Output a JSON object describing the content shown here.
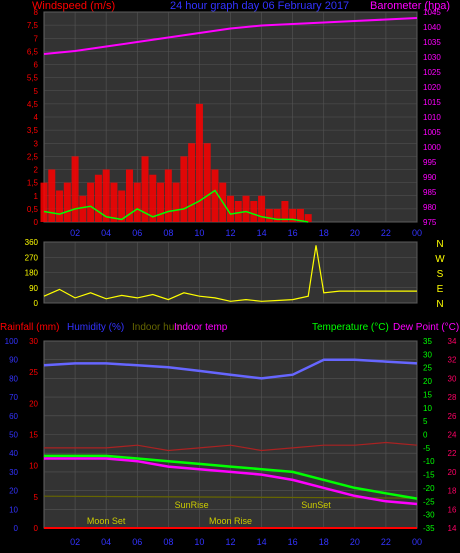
{
  "header": {
    "title": "24 hour graph day   06 February 2017",
    "left_label": "Windspeed (m/s)",
    "right_label": "Barometer (hpa)"
  },
  "colors": {
    "background": "#000000",
    "plot_bg": "#333333",
    "grid": "#555555",
    "wind": "#ff0000",
    "gust": "#00ff00",
    "barometer": "#ff00ff",
    "direction": "#ffff00",
    "rain": "#ff0000",
    "humidity": "#6666ff",
    "indoor_hum": "#666600",
    "indoor_temp": "#aa2222",
    "temperature": "#00ff00",
    "dewpoint": "#ff00ff",
    "axis_blue": "#3333ff",
    "axis_green": "#00ff00",
    "axis_pink": "#ff0066"
  },
  "chart_data": [
    {
      "type": "line",
      "title": "24 hour graph day   06 February 2017",
      "ylabel": "Windspeed (m/s)",
      "y2label": "Barometer (hpa)",
      "x_ticks": [
        "02",
        "04",
        "06",
        "08",
        "10",
        "12",
        "14",
        "16",
        "18",
        "20",
        "22",
        "00"
      ],
      "ylim": [
        0,
        8
      ],
      "y_ticks": [
        "0",
        "0,5",
        "1",
        "1,5",
        "2",
        "2,5",
        "3",
        "3,5",
        "4",
        "4,5",
        "5",
        "5,5",
        "6",
        "6,5",
        "7",
        "7,5",
        "8"
      ],
      "y2lim": [
        975,
        1045
      ],
      "y2_ticks": [
        "975",
        "980",
        "985",
        "990",
        "995",
        "1000",
        "1005",
        "1010",
        "1015",
        "1020",
        "1025",
        "1030",
        "1035",
        "1040",
        "1045"
      ],
      "series": [
        {
          "name": "Windspeed",
          "x": [
            0,
            0.5,
            1,
            1.5,
            2,
            2.5,
            3,
            3.5,
            4,
            4.5,
            5,
            5.5,
            6,
            6.5,
            7,
            7.5,
            8,
            8.5,
            9,
            9.5,
            10,
            10.5,
            11,
            11.5,
            12,
            12.5,
            13,
            13.5,
            14,
            14.5,
            15,
            15.5,
            16,
            16.5,
            17
          ],
          "values": [
            1.5,
            2.0,
            1.2,
            1.5,
            2.5,
            1.0,
            1.5,
            1.8,
            2.0,
            1.5,
            1.2,
            2.0,
            1.5,
            2.5,
            1.8,
            1.5,
            2.0,
            1.5,
            2.5,
            3.0,
            4.5,
            3.0,
            2.0,
            1.5,
            1.0,
            0.8,
            1.0,
            0.8,
            1.0,
            0.5,
            0.5,
            0.8,
            0.5,
            0.5,
            0.3
          ]
        },
        {
          "name": "Gust",
          "x": [
            0,
            1,
            2,
            3,
            4,
            5,
            6,
            7,
            8,
            9,
            10,
            11,
            12,
            13,
            14,
            15,
            16,
            17
          ],
          "values": [
            0.4,
            0.3,
            0.5,
            0.6,
            0.2,
            0.1,
            0.5,
            0.2,
            0.4,
            0.5,
            0.8,
            1.2,
            0.3,
            0.4,
            0.2,
            0.1,
            0.1,
            0.0
          ]
        },
        {
          "name": "Barometer",
          "axis": "y2",
          "x": [
            0,
            2,
            4,
            6,
            8,
            10,
            12,
            14,
            16,
            18,
            20,
            22,
            24
          ],
          "values": [
            1031,
            1032,
            1033.5,
            1035,
            1036.5,
            1038,
            1039.5,
            1040.5,
            1041,
            1041.5,
            1042,
            1042.5,
            1043
          ]
        }
      ]
    },
    {
      "type": "line",
      "title": "",
      "ylabel": "",
      "ylim": [
        0,
        360
      ],
      "y_ticks": [
        "0",
        "90",
        "180",
        "270",
        "360"
      ],
      "right_labels": [
        "N",
        "W",
        "S",
        "E",
        "N"
      ],
      "series": [
        {
          "name": "Wind direction",
          "x": [
            0,
            1,
            2,
            3,
            4,
            5,
            6,
            7,
            8,
            9,
            10,
            11,
            12,
            13,
            14,
            15,
            16,
            17,
            17.5,
            18,
            19,
            20,
            21,
            22,
            23,
            24
          ],
          "values": [
            40,
            80,
            30,
            60,
            25,
            45,
            30,
            50,
            20,
            60,
            40,
            30,
            10,
            20,
            10,
            15,
            20,
            40,
            340,
            60,
            70,
            70,
            70,
            70,
            70,
            70
          ]
        }
      ]
    },
    {
      "type": "line",
      "title": "",
      "legend_left": [
        "Rainfall (mm)",
        "Humidity (%)",
        "Indoor hum",
        "Indoor temp"
      ],
      "legend_right": [
        "Temperature (°C)",
        "Dew Point (°C)"
      ],
      "x_ticks": [
        "02",
        "04",
        "06",
        "08",
        "10",
        "12",
        "14",
        "16",
        "18",
        "20",
        "22",
        "00"
      ],
      "rain_ticks": [
        "0",
        "5",
        "10",
        "15",
        "20",
        "25",
        "30"
      ],
      "rain_lim": [
        0,
        30
      ],
      "hum_ticks": [
        "0",
        "10",
        "20",
        "30",
        "40",
        "50",
        "60",
        "70",
        "80",
        "90",
        "100"
      ],
      "hum_lim": [
        0,
        100
      ],
      "temp_ticks": [
        "-35",
        "-30",
        "-25",
        "-20",
        "-15",
        "-10",
        "-5",
        "0",
        "5",
        "10",
        "15",
        "20",
        "25",
        "30",
        "35"
      ],
      "temp_lim": [
        -35,
        35
      ],
      "dew_ticks": [
        "14",
        "16",
        "18",
        "20",
        "22",
        "24",
        "26",
        "28",
        "30",
        "32",
        "34"
      ],
      "annotations": [
        "Moon Set",
        "SunRise",
        "Moon Rise",
        "SunSet"
      ],
      "series": [
        {
          "name": "Humidity",
          "x": [
            0,
            2,
            4,
            6,
            8,
            10,
            12,
            14,
            16,
            18,
            20,
            22,
            24
          ],
          "values": [
            87,
            88,
            88,
            87,
            86,
            84,
            82,
            80,
            82,
            90,
            90,
            89,
            88
          ]
        },
        {
          "name": "Indoor hum",
          "x": [
            0,
            24
          ],
          "values": [
            17,
            16
          ]
        },
        {
          "name": "Indoor temp",
          "x": [
            0,
            2,
            4,
            6,
            8,
            10,
            12,
            14,
            16,
            18,
            20,
            22,
            24
          ],
          "values": [
            -5,
            -5,
            -5,
            -4,
            -6,
            -5,
            -4,
            -6,
            -5,
            -4,
            -4,
            -3,
            -4
          ]
        },
        {
          "name": "Temperature",
          "x": [
            0,
            2,
            4,
            6,
            8,
            10,
            12,
            14,
            16,
            18,
            20,
            22,
            24
          ],
          "values": [
            -8,
            -8,
            -8,
            -9,
            -10,
            -11,
            -12,
            -13,
            -14,
            -17,
            -20,
            -22,
            -24
          ]
        },
        {
          "name": "Dew Point",
          "x": [
            0,
            2,
            4,
            6,
            8,
            10,
            12,
            14,
            16,
            18,
            20,
            22,
            24
          ],
          "values": [
            -9,
            -9,
            -9,
            -10,
            -12,
            -13,
            -14,
            -15,
            -17,
            -20,
            -23,
            -25,
            -26
          ]
        },
        {
          "name": "Rainfall",
          "x": [
            0,
            24
          ],
          "values": [
            0,
            0
          ]
        }
      ]
    }
  ]
}
